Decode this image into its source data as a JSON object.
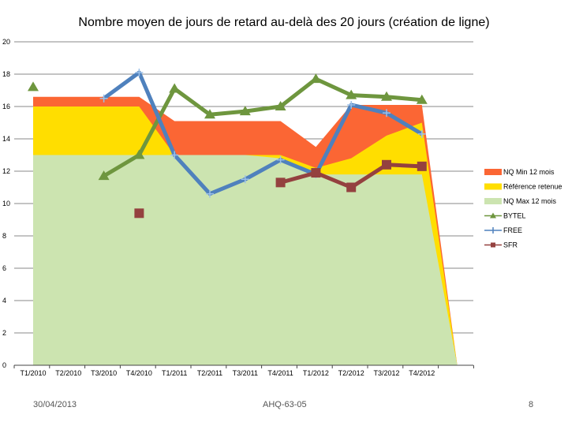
{
  "colors": {
    "nq_min": "#fb6634",
    "ref": "#ffde00",
    "nq_max": "#cce4b0",
    "bytel": "#6e963e",
    "free": "#4f81bd",
    "sfr": "#94413f",
    "grid": "#888888"
  },
  "footer": {
    "date": "30/04/2013",
    "ref": "AHQ-63-05",
    "page": "8"
  },
  "chart_data": {
    "type": "line",
    "title": "Nombre moyen de jours de retard au-delà des 20 jours (création de ligne)",
    "categories": [
      "T1/2010",
      "T2/2010",
      "T3/2010",
      "T4/2010",
      "T1/2011",
      "T2/2011",
      "T3/2011",
      "T4/2011",
      "T1/2012",
      "T2/2012",
      "T3/2012",
      "T4/2012",
      ""
    ],
    "ylim": [
      0,
      20
    ],
    "yticks": [
      "0",
      "2",
      "4",
      "6",
      "8",
      "10",
      "12",
      "14",
      "16",
      "18",
      "20"
    ],
    "grid": true,
    "legend_position": "right",
    "areas": [
      {
        "name": "NQ Min 12 mois",
        "color_key": "nq_min",
        "values": [
          16.6,
          16.6,
          16.6,
          16.6,
          15.1,
          15.1,
          15.1,
          15.1,
          13.5,
          16.1,
          16.1,
          16.1,
          0
        ]
      },
      {
        "name": "Référence retenue",
        "color_key": "ref",
        "values": [
          16.0,
          16.0,
          16.0,
          16.0,
          13.0,
          13.0,
          13.0,
          13.0,
          12.2,
          12.8,
          14.2,
          15.0,
          0
        ]
      },
      {
        "name": "NQ Max 12 mois",
        "color_key": "nq_max",
        "values": [
          13.0,
          13.0,
          13.0,
          13.0,
          13.0,
          13.0,
          13.0,
          12.8,
          11.8,
          11.8,
          11.8,
          11.8,
          0
        ]
      }
    ],
    "series": [
      {
        "name": "BYTEL",
        "color_key": "bytel",
        "marker": "triangle",
        "values": [
          17.2,
          null,
          11.7,
          13.0,
          17.1,
          15.5,
          15.7,
          16.0,
          17.7,
          16.7,
          16.6,
          16.4,
          null
        ]
      },
      {
        "name": "FREE",
        "color_key": "free",
        "marker": "plus",
        "values": [
          null,
          null,
          16.5,
          18.1,
          13.0,
          10.6,
          11.5,
          12.7,
          11.8,
          16.1,
          15.6,
          14.3,
          null
        ]
      },
      {
        "name": "SFR",
        "color_key": "sfr",
        "marker": "square",
        "values": [
          null,
          null,
          null,
          9.4,
          null,
          null,
          null,
          11.3,
          11.9,
          11.0,
          12.4,
          12.3,
          null
        ]
      }
    ]
  }
}
